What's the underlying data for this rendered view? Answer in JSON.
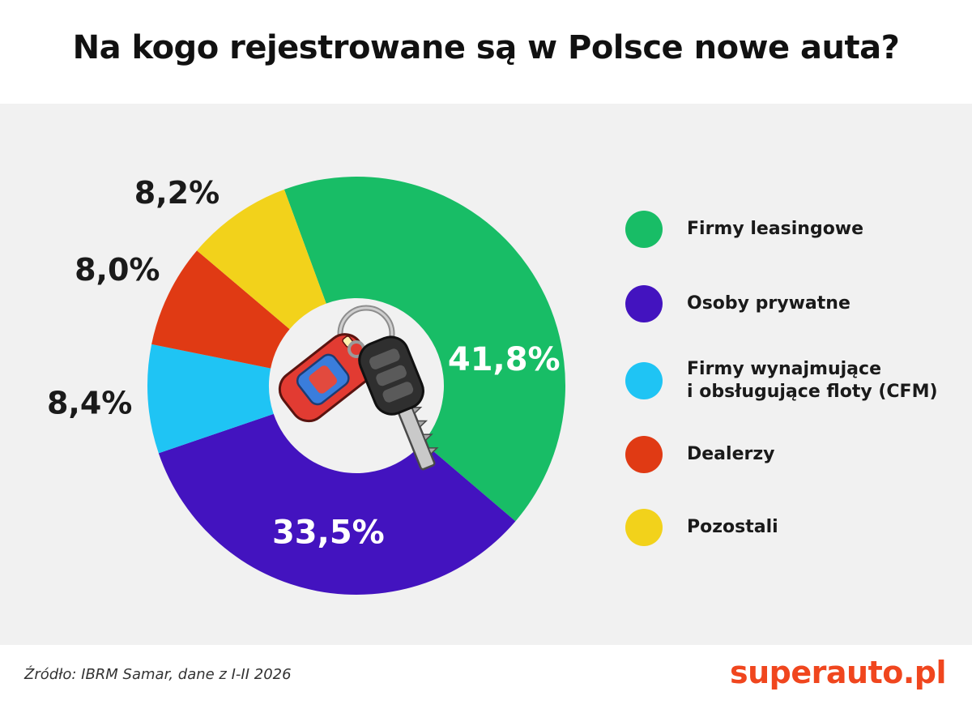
{
  "title": "Na kogo rejestrowane są w Polsce nowe auta?",
  "chart_data": {
    "type": "pie",
    "categories": [
      "Firmy leasingowe",
      "Osoby prywatne",
      "Firmy wynajmujące\ni obsługujące floty (CFM)",
      "Dealerzy",
      "Pozostali"
    ],
    "values": [
      41.8,
      33.5,
      8.4,
      8.0,
      8.2
    ],
    "labels": [
      "41,8%",
      "33,5%",
      "8,4%",
      "8,0%",
      "8,2%"
    ],
    "colors": [
      "#18bd66",
      "#4313bf",
      "#1fc4f4",
      "#e03a14",
      "#f2d21b"
    ],
    "legend_placement": "right"
  },
  "center_icon": "car-and-keys-icon",
  "footer": {
    "source": "Źródło: IBRM Samar, dane z I-II 2026",
    "brand": "superauto.pl"
  }
}
